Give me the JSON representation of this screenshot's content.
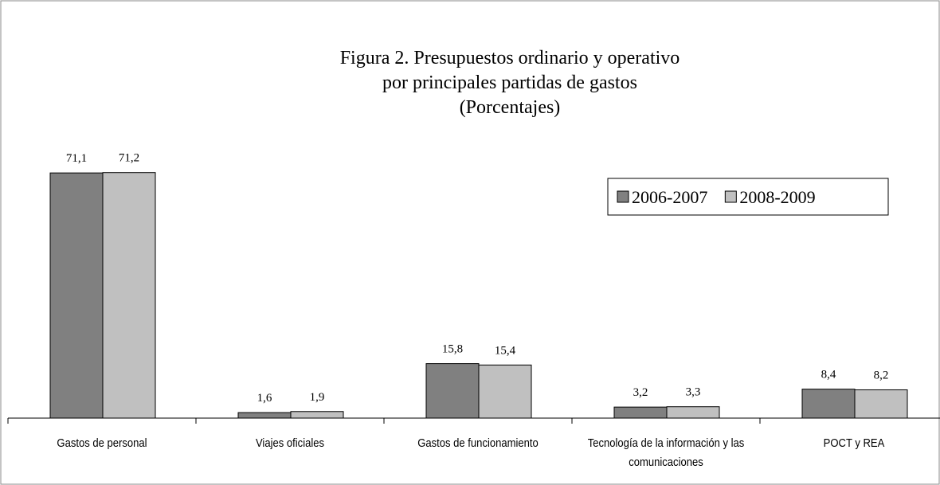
{
  "chart_data": {
    "type": "bar",
    "title": [
      "Figura 2.  Presupuestos ordinario y operativo",
      "por principales partidas de gastos",
      "(Porcentajes)"
    ],
    "categories": [
      "Gastos de personal",
      "Viajes oficiales",
      "Gastos de funcionamiento",
      "Tecnología de la información y las comunicaciones",
      "POCT y REA"
    ],
    "series": [
      {
        "name": "2006-2007",
        "color": "#808080",
        "values": [
          71.1,
          1.6,
          15.8,
          3.2,
          8.4
        ],
        "value_labels": [
          "71,1",
          "1,6",
          "15,8",
          "3,2",
          "8,4"
        ]
      },
      {
        "name": "2008-2009",
        "color": "#c0c0c0",
        "values": [
          71.2,
          1.9,
          15.4,
          3.3,
          8.2
        ],
        "value_labels": [
          "71,2",
          "1,9",
          "15,4",
          "3,3",
          "8,2"
        ]
      }
    ],
    "legend": "upper right"
  }
}
